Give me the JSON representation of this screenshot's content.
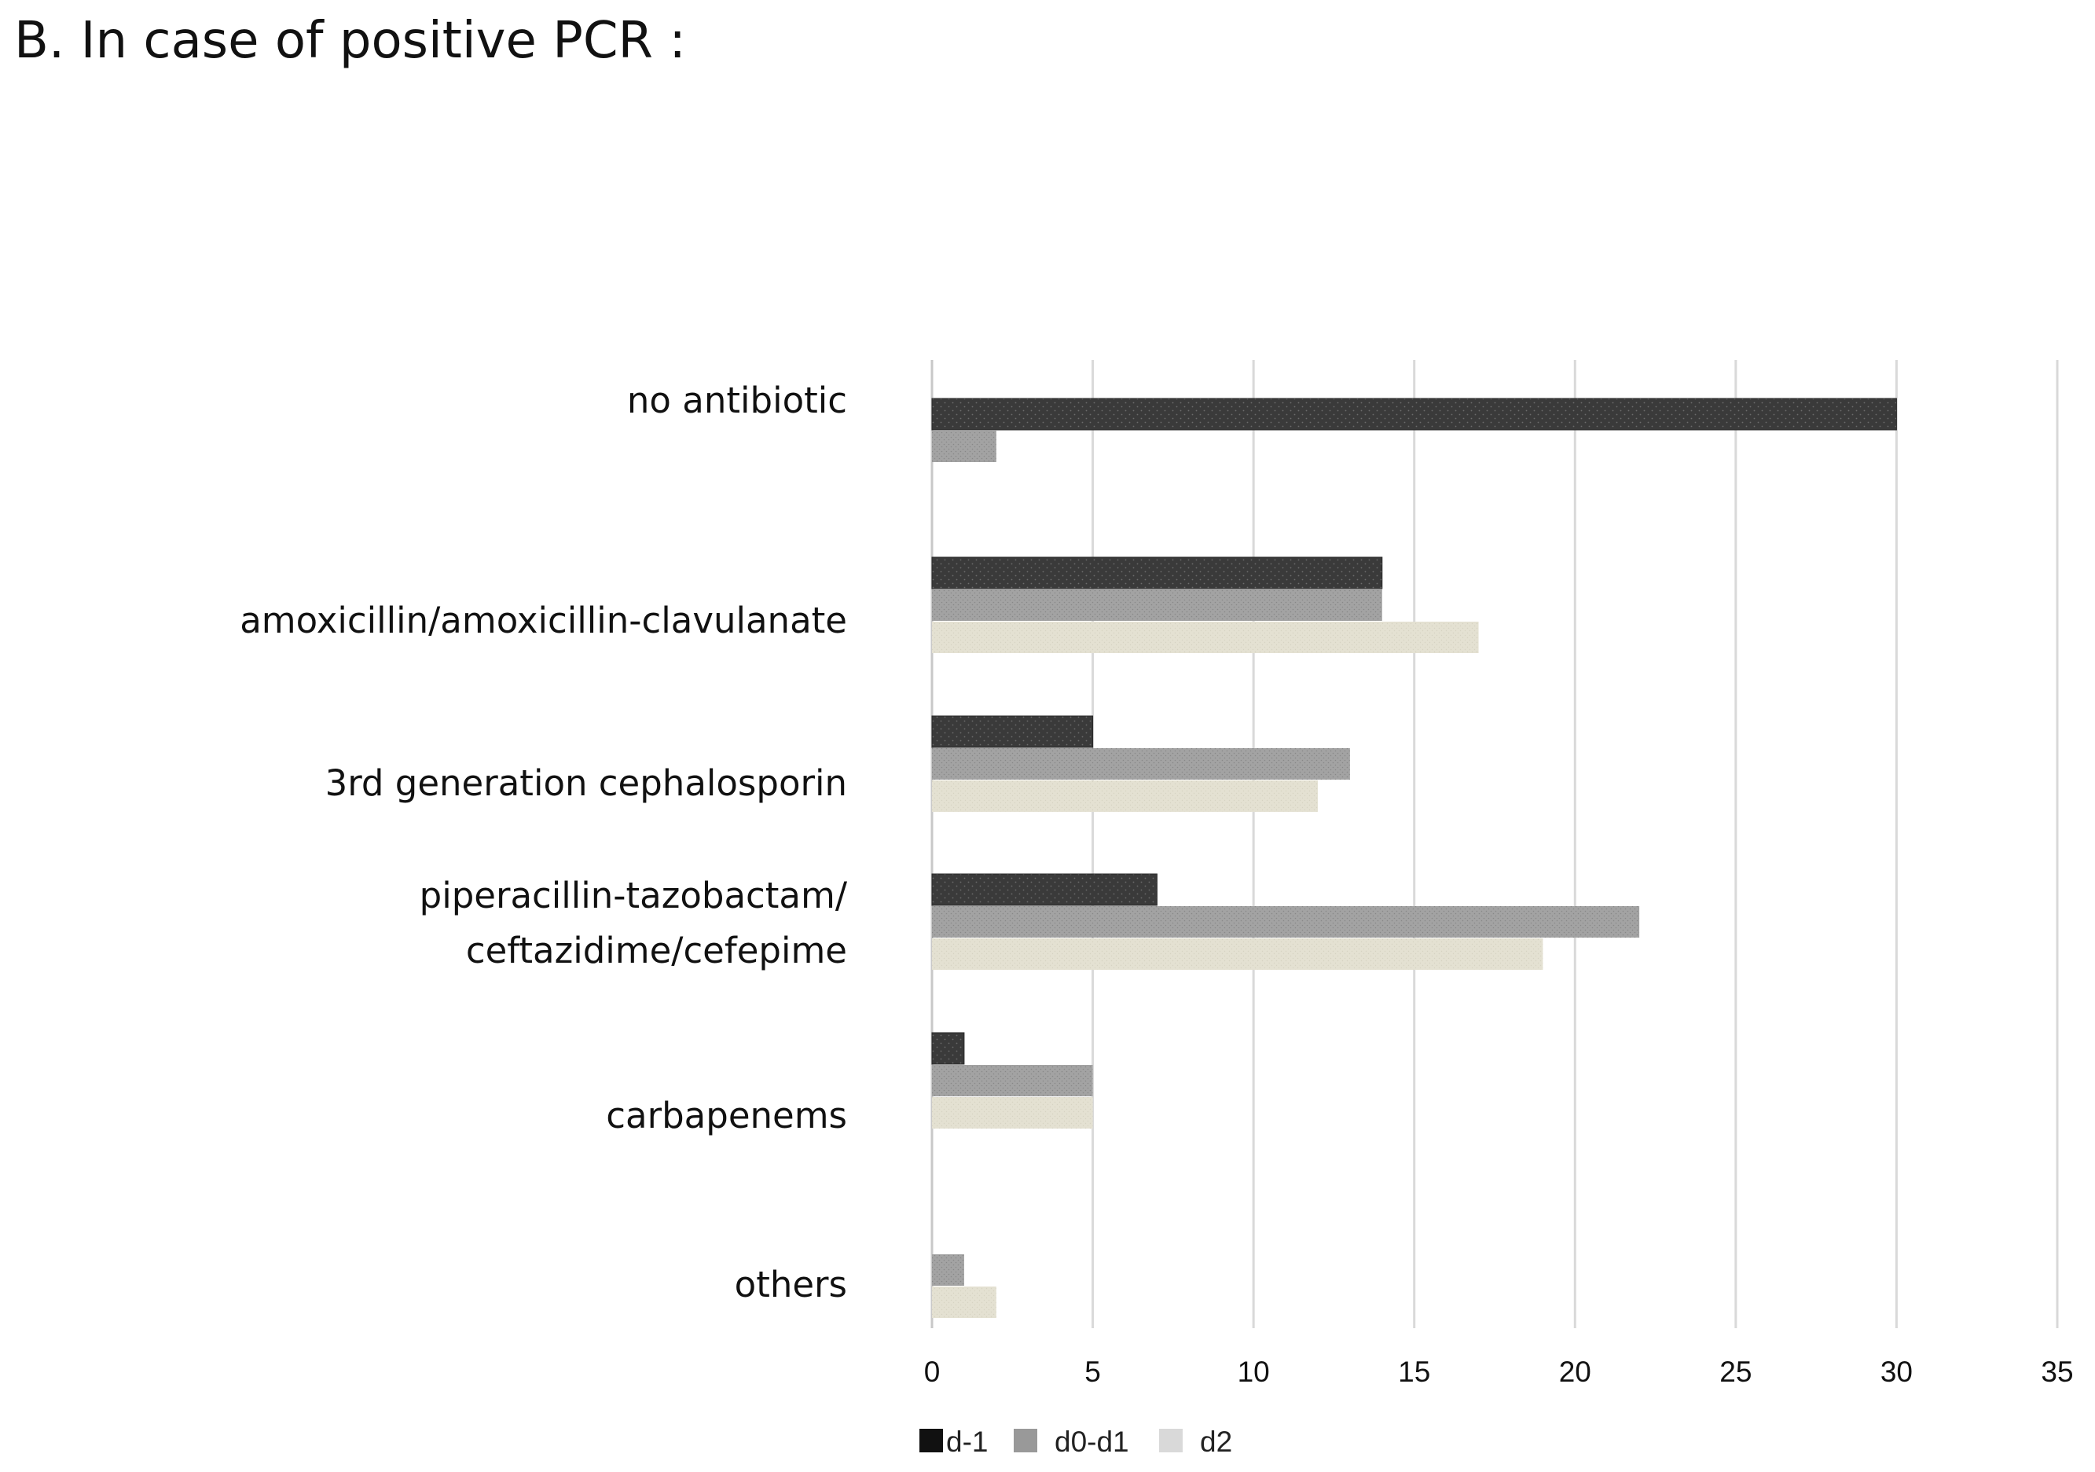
{
  "page": {
    "title": "B. In case of positive PCR :"
  },
  "chart_data": {
    "type": "bar",
    "orientation": "horizontal",
    "title": "B. In case of positive PCR :",
    "xlabel": "",
    "ylabel": "",
    "categories": [
      [
        "no antibiotic"
      ],
      [
        "amoxicillin/amoxicillin-clavulanate"
      ],
      [
        "3rd generation cephalosporin"
      ],
      [
        "piperacillin-tazobactam/",
        "ceftazidime/cefepime"
      ],
      [
        "carbapenems"
      ],
      [
        "others"
      ]
    ],
    "series": [
      {
        "name": "d-1",
        "color": "#3a3a3a",
        "values": [
          30,
          14,
          5,
          7,
          1,
          0
        ]
      },
      {
        "name": "d0-d1",
        "color": "#a3a3a3",
        "values": [
          2,
          14,
          13,
          22,
          5,
          1
        ]
      },
      {
        "name": "d2",
        "color": "#e3e0d0",
        "values": [
          0,
          17,
          12,
          19,
          5,
          2
        ]
      }
    ],
    "legend_colors": [
      "#111111",
      "#999999",
      "#d9d9d9"
    ],
    "xlim": [
      0,
      35
    ],
    "xticks": [
      0,
      5,
      10,
      15,
      20,
      25,
      30,
      35
    ],
    "grid": true,
    "legend_position": "bottom"
  }
}
